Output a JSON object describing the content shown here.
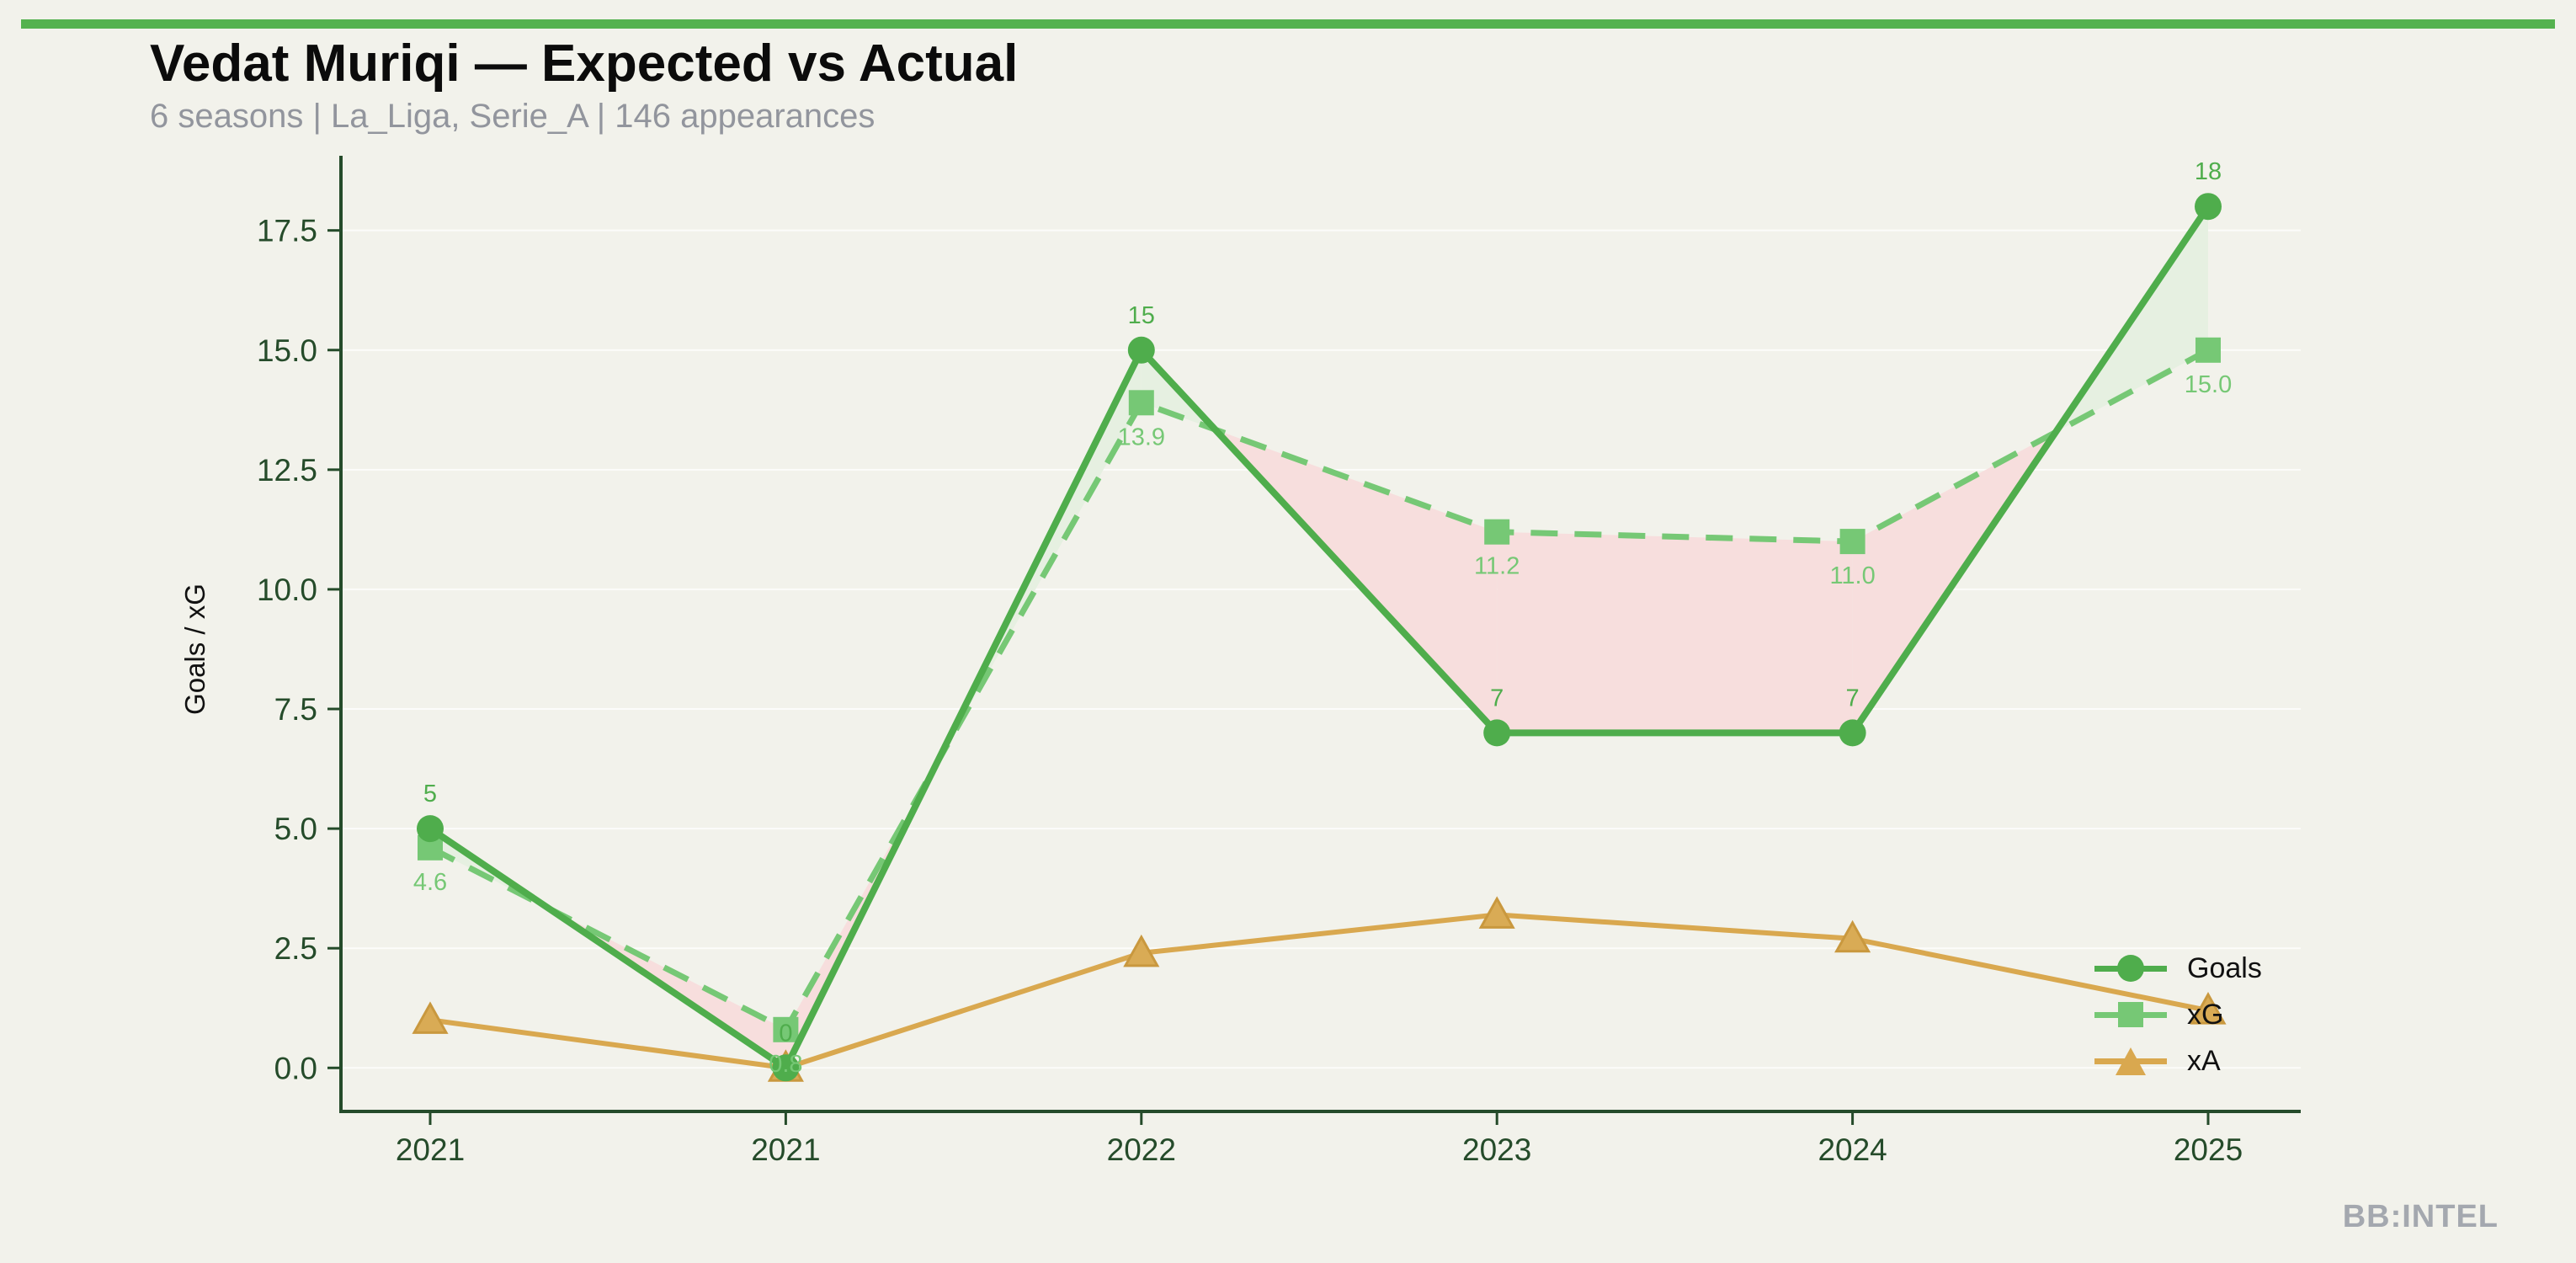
{
  "page": {
    "title": "Vedat Muriqi — Expected vs Actual",
    "subtitle": "6 seasons | La_Liga, Serie_A | 146 appearances",
    "watermark": "BB:INTEL",
    "background": "#f2f2eb",
    "accent_bar_color": "#55b24f",
    "title_color": "#0b0b0b",
    "subtitle_color": "#92959d",
    "watermark_color": "#a4a8af"
  },
  "chart_data": {
    "type": "line",
    "title": "Vedat Muriqi — Expected vs Actual",
    "subtitle": "6 seasons | La_Liga, Serie_A | 146 appearances",
    "categories": [
      "2021",
      "2021",
      "2022",
      "2023",
      "2024",
      "2025"
    ],
    "series": [
      {
        "name": "Goals",
        "marker": "circle",
        "line_style": "solid",
        "color": "#4fad4c",
        "values": [
          5,
          0,
          15,
          7,
          7,
          18
        ],
        "point_labels": [
          "5",
          "0",
          "15",
          "7",
          "7",
          "18"
        ]
      },
      {
        "name": "xG",
        "marker": "square",
        "line_style": "dashed",
        "color": "#76c875",
        "values": [
          4.6,
          0.8,
          13.9,
          11.2,
          11.0,
          15.0
        ],
        "point_labels": [
          "4.6",
          "0.8",
          "13.9",
          "11.2",
          "11.0",
          "15.0"
        ]
      },
      {
        "name": "xA",
        "marker": "triangle",
        "line_style": "solid",
        "color": "#d9a84f",
        "marker_fill": "#d9ab55",
        "marker_edge": "#c9983e",
        "values": [
          1.0,
          0.0,
          2.4,
          3.2,
          2.7,
          1.2
        ],
        "point_labels": []
      }
    ],
    "ylabel": "Goals / xG",
    "xlabel": "",
    "yticks": [
      0.0,
      2.5,
      5.0,
      7.5,
      10.0,
      12.5,
      15.0,
      17.5
    ],
    "ytick_labels": [
      "0.0",
      "2.5",
      "5.0",
      "7.5",
      "10.0",
      "12.5",
      "15.0",
      "17.5"
    ],
    "ylim": [
      -0.91,
      19.06
    ],
    "grid": true,
    "grid_color": "rgba(255,255,255,0.75)",
    "axis_color": "#254b2a",
    "fill_between": {
      "above_color": "#e6f0e1",
      "below_color": "#f7dedd",
      "series_a": "Goals",
      "series_b": "xG"
    },
    "legend_position": "lower right"
  }
}
